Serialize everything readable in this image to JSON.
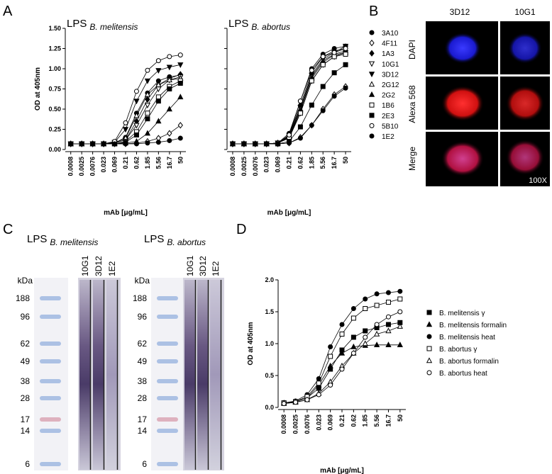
{
  "panel_labels": [
    "A",
    "B",
    "C",
    "D"
  ],
  "chart_data": [
    {
      "type": "line",
      "title": "LPS",
      "subtitle": "B. melitensis",
      "xlabel": "mAb [μg/mL]",
      "ylabel": "OD at 405nm",
      "categories": [
        "0.0008",
        "0.0025",
        "0.0076",
        "0.023",
        "0.069",
        "0.21",
        "0.62",
        "1.85",
        "5.56",
        "16.7",
        "50"
      ],
      "ylim": [
        0,
        1.5
      ],
      "yticks": [
        {
          "value": 0,
          "label": "0.00"
        },
        {
          "value": 0.25,
          "label": "0.25"
        },
        {
          "value": 0.5,
          "label": "0.50"
        },
        {
          "value": 0.75,
          "label": "0.75"
        },
        {
          "value": 1,
          "label": "1.00"
        },
        {
          "value": 1.25,
          "label": "1.25"
        },
        {
          "value": 1.5,
          "label": "1.50"
        }
      ],
      "series": [
        {
          "name": "3A10",
          "marker": "circle",
          "filled": true,
          "color": "#000000",
          "values": [
            0.07,
            0.07,
            0.07,
            0.07,
            0.08,
            0.15,
            0.45,
            0.7,
            0.85,
            0.9,
            0.92
          ]
        },
        {
          "name": "4F11",
          "marker": "diamond",
          "filled": false,
          "color": "#000000",
          "values": [
            0.07,
            0.07,
            0.07,
            0.07,
            0.07,
            0.07,
            0.08,
            0.1,
            0.14,
            0.2,
            0.3
          ]
        },
        {
          "name": "1A3",
          "marker": "diamond",
          "filled": true,
          "color": "#000000",
          "values": [
            0.07,
            0.07,
            0.07,
            0.07,
            0.08,
            0.12,
            0.35,
            0.62,
            0.8,
            0.88,
            0.93
          ]
        },
        {
          "name": "10G1",
          "marker": "triangle-down",
          "filled": false,
          "color": "#000000",
          "values": [
            0.07,
            0.07,
            0.07,
            0.07,
            0.08,
            0.12,
            0.3,
            0.55,
            0.75,
            0.86,
            0.9
          ]
        },
        {
          "name": "3D12",
          "marker": "triangle-down",
          "filled": true,
          "color": "#000000",
          "values": [
            0.07,
            0.07,
            0.07,
            0.07,
            0.09,
            0.25,
            0.6,
            0.85,
            0.98,
            1.02,
            1.05
          ]
        },
        {
          "name": "2G12",
          "marker": "triangle",
          "filled": false,
          "color": "#000000",
          "values": [
            0.07,
            0.07,
            0.07,
            0.07,
            0.08,
            0.14,
            0.42,
            0.68,
            0.8,
            0.86,
            0.88
          ]
        },
        {
          "name": "2G2",
          "marker": "triangle",
          "filled": true,
          "color": "#000000",
          "values": [
            0.07,
            0.07,
            0.07,
            0.07,
            0.07,
            0.08,
            0.1,
            0.2,
            0.35,
            0.5,
            0.65
          ]
        },
        {
          "name": "1B6",
          "marker": "square",
          "filled": false,
          "color": "#000000",
          "values": [
            0.07,
            0.07,
            0.07,
            0.07,
            0.07,
            0.1,
            0.22,
            0.45,
            0.65,
            0.78,
            0.85
          ]
        },
        {
          "name": "2E3",
          "marker": "square",
          "filled": true,
          "color": "#000000",
          "values": [
            0.07,
            0.07,
            0.07,
            0.07,
            0.07,
            0.09,
            0.18,
            0.38,
            0.6,
            0.75,
            0.82
          ]
        },
        {
          "name": "5B10",
          "marker": "circle",
          "filled": false,
          "color": "#000000",
          "values": [
            0.07,
            0.07,
            0.07,
            0.07,
            0.1,
            0.33,
            0.72,
            0.98,
            1.1,
            1.15,
            1.17
          ]
        },
        {
          "name": "1E2",
          "marker": "circle",
          "filled": true,
          "color": "#000000",
          "values": [
            0.07,
            0.07,
            0.07,
            0.07,
            0.07,
            0.07,
            0.07,
            0.08,
            0.09,
            0.11,
            0.14
          ]
        }
      ]
    },
    {
      "type": "line",
      "title": "LPS",
      "subtitle": "B. abortus",
      "xlabel": "mAb [μg/mL]",
      "categories": [
        "0.0008",
        "0.0025",
        "0.0076",
        "0.023",
        "0.069",
        "0.21",
        "0.62",
        "1.85",
        "5.56",
        "16.7",
        "50"
      ],
      "ylim": [
        0,
        1.5
      ],
      "series": [
        {
          "marker": "circle",
          "filled": true,
          "color": "#000000",
          "values": [
            0.07,
            0.07,
            0.07,
            0.07,
            0.08,
            0.2,
            0.6,
            1.0,
            1.18,
            1.25,
            1.28
          ]
        },
        {
          "marker": "diamond",
          "filled": false,
          "color": "#000000",
          "values": [
            0.07,
            0.07,
            0.07,
            0.07,
            0.07,
            0.08,
            0.15,
            0.3,
            0.5,
            0.68,
            0.78
          ]
        },
        {
          "marker": "diamond",
          "filled": true,
          "color": "#000000",
          "values": [
            0.07,
            0.07,
            0.07,
            0.07,
            0.08,
            0.18,
            0.55,
            0.95,
            1.15,
            1.22,
            1.25
          ]
        },
        {
          "marker": "triangle-down",
          "filled": false,
          "color": "#000000",
          "values": [
            0.07,
            0.07,
            0.07,
            0.07,
            0.08,
            0.15,
            0.45,
            0.85,
            1.05,
            1.15,
            1.2
          ]
        },
        {
          "marker": "triangle-down",
          "filled": true,
          "color": "#000000",
          "values": [
            0.07,
            0.07,
            0.07,
            0.07,
            0.08,
            0.17,
            0.52,
            0.92,
            1.12,
            1.2,
            1.28
          ]
        },
        {
          "marker": "triangle",
          "filled": false,
          "color": "#000000",
          "values": [
            0.07,
            0.07,
            0.07,
            0.07,
            0.08,
            0.16,
            0.5,
            0.9,
            1.1,
            1.18,
            1.22
          ]
        },
        {
          "marker": "triangle",
          "filled": true,
          "color": "#000000",
          "values": [
            0.07,
            0.07,
            0.07,
            0.07,
            0.08,
            0.15,
            0.48,
            0.88,
            1.08,
            1.17,
            1.2
          ]
        },
        {
          "marker": "square",
          "filled": false,
          "color": "#000000",
          "values": [
            0.07,
            0.07,
            0.07,
            0.07,
            0.08,
            0.14,
            0.45,
            0.85,
            1.05,
            1.15,
            1.18
          ]
        },
        {
          "marker": "square",
          "filled": true,
          "color": "#000000",
          "values": [
            0.07,
            0.07,
            0.07,
            0.07,
            0.07,
            0.1,
            0.28,
            0.55,
            0.78,
            0.95,
            1.05
          ]
        },
        {
          "marker": "circle",
          "filled": false,
          "color": "#000000",
          "values": [
            0.07,
            0.07,
            0.07,
            0.07,
            0.08,
            0.18,
            0.6,
            0.98,
            1.15,
            1.2,
            1.25
          ]
        },
        {
          "marker": "circle",
          "filled": true,
          "color": "#000000",
          "values": [
            0.07,
            0.07,
            0.07,
            0.07,
            0.07,
            0.08,
            0.14,
            0.3,
            0.48,
            0.66,
            0.76
          ]
        }
      ]
    },
    {
      "type": "line",
      "xlabel": "mAb [μg/mL]",
      "ylabel": "OD at 405nm",
      "categories": [
        "0.0008",
        "0.0025",
        "0.0076",
        "0.023",
        "0.069",
        "0.21",
        "0.62",
        "1.85",
        "5.56",
        "16.7",
        "50"
      ],
      "ylim": [
        0,
        2
      ],
      "yticks": [
        {
          "value": 0,
          "label": "0.0"
        },
        {
          "value": 0.5,
          "label": "0.5"
        },
        {
          "value": 1,
          "label": "1.0"
        },
        {
          "value": 1.5,
          "label": "1.5"
        },
        {
          "value": 2,
          "label": "2.0"
        }
      ],
      "series": [
        {
          "name": "B. melitensis γ",
          "marker": "square",
          "filled": true,
          "color": "#000000",
          "values": [
            0.07,
            0.09,
            0.15,
            0.3,
            0.6,
            0.9,
            1.1,
            1.2,
            1.25,
            1.3,
            1.33
          ]
        },
        {
          "name": "B. melitensis formalin",
          "marker": "triangle",
          "filled": true,
          "color": "#000000",
          "values": [
            0.07,
            0.09,
            0.15,
            0.35,
            0.65,
            0.85,
            0.95,
            0.97,
            0.98,
            0.98,
            0.98
          ]
        },
        {
          "name": "B. melitensis heat",
          "marker": "circle",
          "filled": true,
          "color": "#000000",
          "values": [
            0.07,
            0.1,
            0.2,
            0.45,
            0.95,
            1.3,
            1.55,
            1.7,
            1.78,
            1.8,
            1.82
          ]
        },
        {
          "name": "B. abortus γ",
          "marker": "square",
          "filled": false,
          "color": "#000000",
          "values": [
            0.07,
            0.09,
            0.17,
            0.38,
            0.8,
            1.15,
            1.4,
            1.55,
            1.6,
            1.65,
            1.7
          ]
        },
        {
          "name": "B. abortus formalin",
          "marker": "triangle",
          "filled": false,
          "color": "#000000",
          "values": [
            0.06,
            0.08,
            0.12,
            0.22,
            0.4,
            0.65,
            0.85,
            1.0,
            1.15,
            1.2,
            1.27
          ]
        },
        {
          "name": "B. abortus heat",
          "marker": "circle",
          "filled": false,
          "color": "#000000",
          "values": [
            0.06,
            0.08,
            0.12,
            0.2,
            0.35,
            0.6,
            0.85,
            1.1,
            1.3,
            1.42,
            1.5
          ]
        }
      ]
    }
  ],
  "microscopy": {
    "columns": [
      "3D12",
      "10G1"
    ],
    "rows": [
      "DAPI",
      "Alexa 568",
      "Merge"
    ],
    "magnification": "100X"
  },
  "blots": [
    {
      "title": "LPS",
      "subtitle": "B. melitensis",
      "lanes": [
        "10G1",
        "3D12",
        "1E2"
      ],
      "unit": "kDa",
      "markers": [
        "188",
        "96",
        "62",
        "49",
        "38",
        "28",
        "17",
        "14",
        "6"
      ]
    },
    {
      "title": "LPS",
      "subtitle": "B. abortus",
      "lanes": [
        "10G1",
        "3D12",
        "1E2"
      ],
      "unit": "kDa",
      "markers": [
        "188",
        "96",
        "62",
        "49",
        "38",
        "28",
        "17",
        "14",
        "6"
      ]
    }
  ]
}
